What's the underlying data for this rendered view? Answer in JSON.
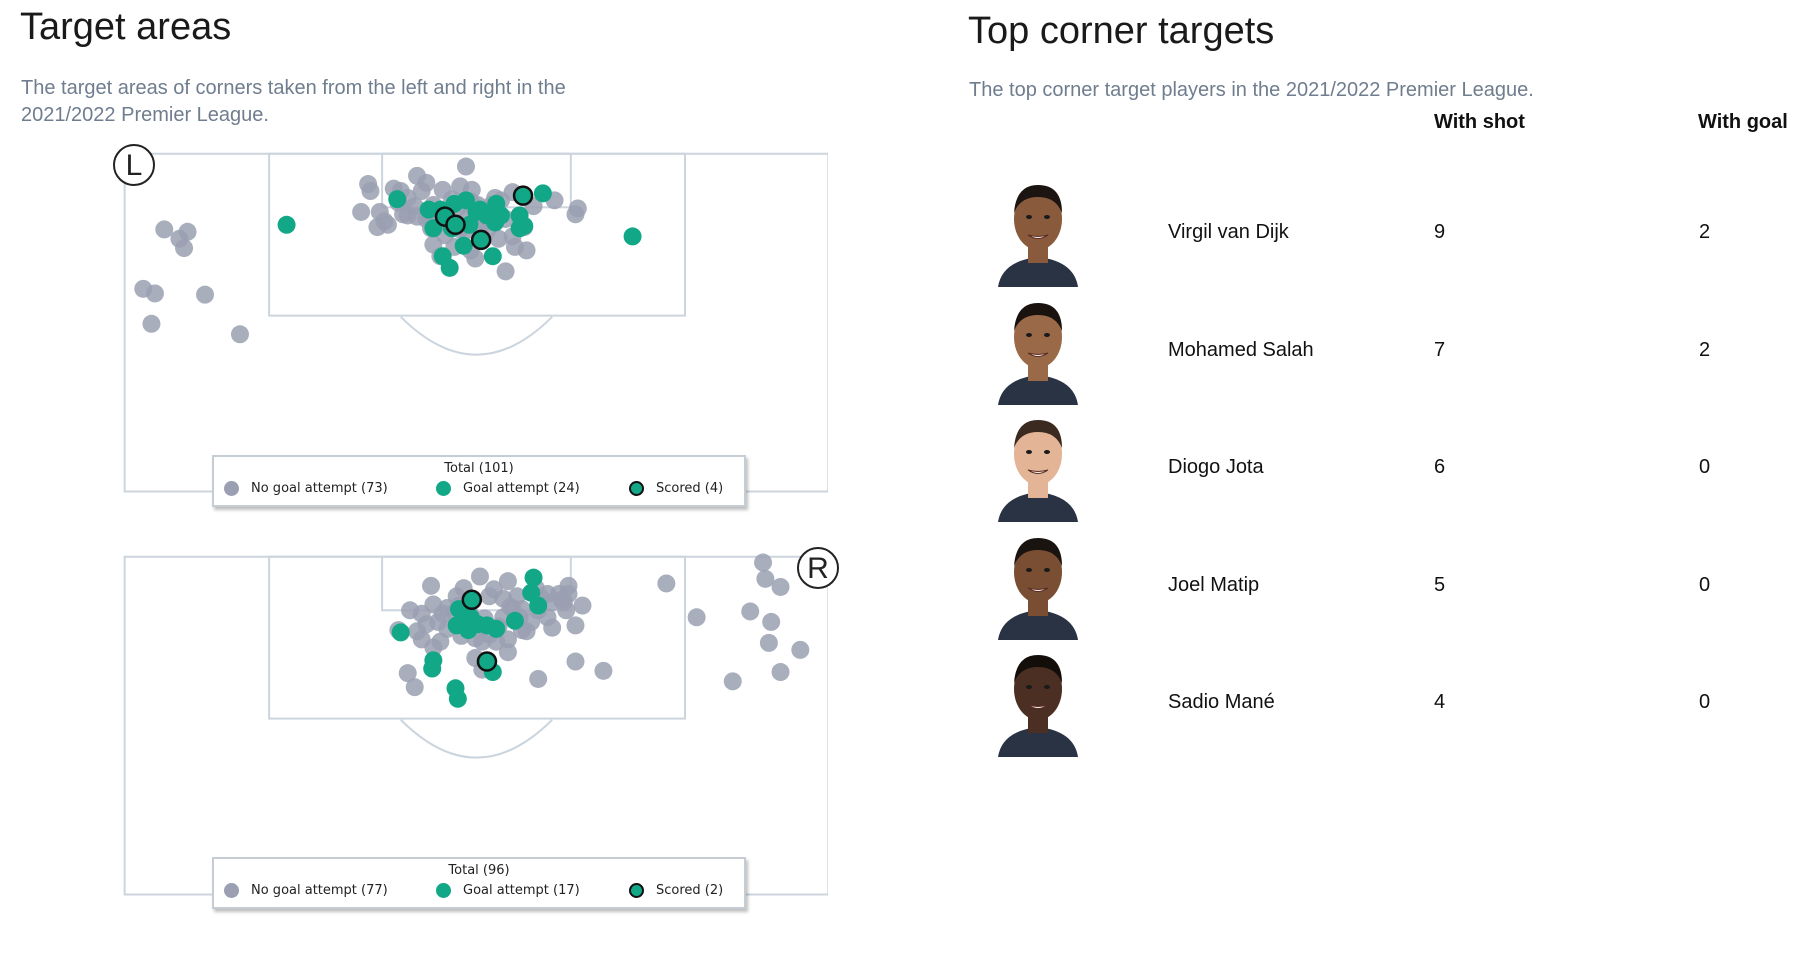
{
  "left_panel": {
    "title": "Target areas",
    "subtitle": "The target areas of corners taken from the left and right in the 2021/2022 Premier League."
  },
  "right_panel": {
    "title": "Top corner targets",
    "subtitle": "The top corner target players in the 2021/2022 Premier League.",
    "col_shot": "With shot",
    "col_goal": "With goal"
  },
  "colors": {
    "no_attempt": "#9aa0b2",
    "goal_attempt": "#12a887",
    "scored_ring": "#111111",
    "pitch_line": "#ccd5de"
  },
  "chart_data": [
    {
      "type": "scatter",
      "side_label": "L",
      "total_label": "Total (101)",
      "legend": [
        "No goal attempt (73)",
        "Goal attempt (24)",
        "Scored (4)"
      ],
      "series": [
        {
          "name": "No goal attempt (73)",
          "category": "no_attempt",
          "points": [
            [
              400,
              143
            ],
            [
              316,
              158
            ],
            [
              318,
              164
            ],
            [
              358,
              151
            ],
            [
              366,
              157
            ],
            [
              380,
              163
            ],
            [
              395,
              160
            ],
            [
              405,
              163
            ],
            [
              425,
              170
            ],
            [
              430,
              172
            ],
            [
              440,
              165
            ],
            [
              338,
              162
            ],
            [
              344,
              164
            ],
            [
              350,
              170
            ],
            [
              356,
              177
            ],
            [
              372,
              176
            ],
            [
              346,
              184
            ],
            [
              310,
              182
            ],
            [
              326,
              182
            ],
            [
              330,
              190
            ],
            [
              324,
              195
            ],
            [
              333,
              193
            ],
            [
              350,
              185
            ],
            [
              358,
              186
            ],
            [
              366,
              188
            ],
            [
              388,
              171
            ],
            [
              394,
              178
            ],
            [
              404,
              173
            ],
            [
              410,
              176
            ],
            [
              418,
              180
            ],
            [
              428,
              184
            ],
            [
              434,
              188
            ],
            [
              446,
              185
            ],
            [
              458,
              177
            ],
            [
              476,
              172
            ],
            [
              496,
              179
            ],
            [
              494,
              184
            ],
            [
              412,
              185
            ],
            [
              400,
              198
            ],
            [
              404,
              215
            ],
            [
              418,
              198
            ],
            [
              428,
              205
            ],
            [
              440,
              203
            ],
            [
              452,
              215
            ],
            [
              434,
              233
            ],
            [
              372,
              210
            ],
            [
              382,
              202
            ],
            [
              395,
              197
            ],
            [
              408,
              222
            ],
            [
              414,
              192
            ],
            [
              420,
              188
            ],
            [
              376,
              181
            ],
            [
              342,
              174
            ],
            [
              386,
              193
            ],
            [
              370,
              196
            ],
            [
              141,
              197
            ],
            [
              161,
              199
            ],
            [
              154,
              205
            ],
            [
              158,
              213
            ],
            [
              123,
              248
            ],
            [
              133,
              252
            ],
            [
              176,
              253
            ],
            [
              130,
              278
            ],
            [
              206,
              287
            ],
            [
              370,
              188
            ],
            [
              362,
              164
            ],
            [
              422,
              176
            ],
            [
              450,
              195
            ],
            [
              442,
              212
            ],
            [
              390,
              212
            ],
            [
              378,
              220
            ],
            [
              384,
              186
            ],
            [
              402,
              186
            ]
          ]
        },
        {
          "name": "Goal attempt (24)",
          "category": "goal_attempt",
          "points": [
            [
              246,
              193
            ],
            [
              341,
              171
            ],
            [
              368,
              180
            ],
            [
              378,
              180
            ],
            [
              390,
              175
            ],
            [
              400,
              172
            ],
            [
              409,
              182
            ],
            [
              418,
              185
            ],
            [
              426,
              175
            ],
            [
              425,
              191
            ],
            [
              446,
              185
            ],
            [
              446,
              196
            ],
            [
              450,
              194
            ],
            [
              466,
              166
            ],
            [
              372,
              196
            ],
            [
              388,
              196
            ],
            [
              398,
              211
            ],
            [
              403,
              193
            ],
            [
              380,
              220
            ],
            [
              386,
              230
            ],
            [
              423,
              220
            ],
            [
              543,
              203
            ],
            [
              412,
              180
            ],
            [
              430,
              185
            ]
          ]
        },
        {
          "name": "Scored (4)",
          "category": "scored",
          "points": [
            [
              382,
              186
            ],
            [
              391,
              193
            ],
            [
              413,
              206
            ],
            [
              449,
              168
            ]
          ]
        }
      ]
    },
    {
      "type": "scatter",
      "side_label": "R",
      "total_label": "Total (96)",
      "legend": [
        "No goal attempt (77)",
        "Goal attempt (17)",
        "Scored (2)"
      ],
      "series": [
        {
          "name": "No goal attempt (77)",
          "category": "no_attempt",
          "points": [
            [
              412,
              495
            ],
            [
              370,
              503
            ],
            [
              436,
              499
            ],
            [
              460,
              505
            ],
            [
              488,
              503
            ],
            [
              480,
              510
            ],
            [
              392,
              512
            ],
            [
              420,
              512
            ],
            [
              432,
              514
            ],
            [
              444,
              512
            ],
            [
              470,
              510
            ],
            [
              484,
              517
            ],
            [
              448,
              523
            ],
            [
              462,
              524
            ],
            [
              474,
              517
            ],
            [
              486,
              524
            ],
            [
              352,
              524
            ],
            [
              362,
              527
            ],
            [
              372,
              519
            ],
            [
              380,
              527
            ],
            [
              390,
              526
            ],
            [
              404,
              528
            ],
            [
              416,
              531
            ],
            [
              432,
              530
            ],
            [
              440,
              523
            ],
            [
              452,
              542
            ],
            [
              470,
              530
            ],
            [
              494,
              537
            ],
            [
              358,
              542
            ],
            [
              362,
              549
            ],
            [
              378,
              551
            ],
            [
              396,
              546
            ],
            [
              408,
              548
            ],
            [
              414,
              551
            ],
            [
              426,
              551
            ],
            [
              436,
              549
            ],
            [
              448,
              541
            ],
            [
              350,
              578
            ],
            [
              356,
              590
            ],
            [
              408,
              565
            ],
            [
              414,
              575
            ],
            [
              462,
              583
            ],
            [
              494,
              568
            ],
            [
              518,
              576
            ],
            [
              572,
              501
            ],
            [
              598,
              530
            ],
            [
              644,
              525
            ],
            [
              662,
              534
            ],
            [
              655,
              483
            ],
            [
              657,
              497
            ],
            [
              670,
              504
            ],
            [
              660,
              552
            ],
            [
              687,
              558
            ],
            [
              670,
              577
            ],
            [
              629,
              585
            ],
            [
              402,
              534
            ],
            [
              384,
              540
            ],
            [
              420,
              545
            ],
            [
              438,
              521
            ],
            [
              456,
              534
            ],
            [
              482,
              515
            ],
            [
              474,
              539
            ],
            [
              398,
              505
            ],
            [
              384,
              522
            ],
            [
              366,
              536
            ],
            [
              376,
              534
            ],
            [
              410,
              536
            ],
            [
              428,
              538
            ],
            [
              446,
              530
            ],
            [
              488,
              510
            ],
            [
              464,
              513
            ],
            [
              424,
              506
            ],
            [
              394,
              520
            ],
            [
              342,
              541
            ],
            [
              372,
              556
            ],
            [
              436,
              560
            ],
            [
              500,
              520
            ]
          ]
        },
        {
          "name": "Goal attempt (17)",
          "category": "goal_attempt",
          "points": [
            [
              458,
              496
            ],
            [
              462,
              520
            ],
            [
              344,
              543
            ],
            [
              394,
              523
            ],
            [
              392,
              537
            ],
            [
              402,
              541
            ],
            [
              410,
              536
            ],
            [
              418,
              537
            ],
            [
              426,
              540
            ],
            [
              442,
              533
            ],
            [
              404,
              530
            ],
            [
              372,
              567
            ],
            [
              371,
              574
            ],
            [
              423,
              577
            ],
            [
              391,
              591
            ],
            [
              393,
              600
            ],
            [
              456,
              509
            ]
          ]
        },
        {
          "name": "Scored (2)",
          "category": "scored",
          "points": [
            [
              405,
              515
            ],
            [
              418,
              568
            ]
          ]
        }
      ]
    }
  ],
  "players": [
    {
      "name": "Virgil van Dijk",
      "with_shot": "9",
      "with_goal": "2",
      "skin": "#8a5a3c",
      "hair": "#1c1410"
    },
    {
      "name": "Mohamed Salah",
      "with_shot": "7",
      "with_goal": "2",
      "skin": "#9a6a48",
      "hair": "#1a120e"
    },
    {
      "name": "Diogo Jota",
      "with_shot": "6",
      "with_goal": "0",
      "skin": "#e3b496",
      "hair": "#3a2a20"
    },
    {
      "name": "Joel Matip",
      "with_shot": "5",
      "with_goal": "0",
      "skin": "#7a4e33",
      "hair": "#1a1410"
    },
    {
      "name": "Sadio Mané",
      "with_shot": "4",
      "with_goal": "0",
      "skin": "#4a2f22",
      "hair": "#140e0b"
    }
  ]
}
